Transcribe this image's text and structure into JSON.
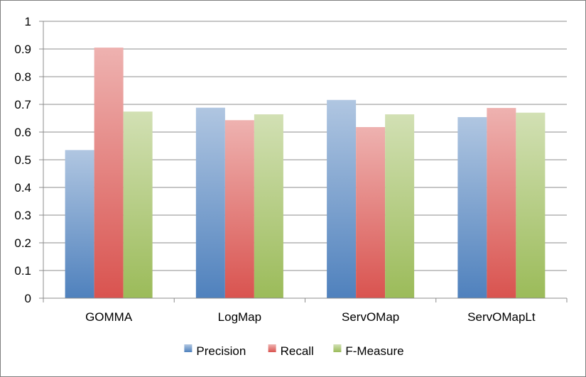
{
  "chart_data": {
    "type": "bar",
    "categories": [
      "GOMMA",
      "LogMap",
      "ServOMap",
      "ServOMapLt"
    ],
    "series": [
      {
        "name": "Precision",
        "values": [
          0.535,
          0.688,
          0.716,
          0.654
        ],
        "color": "#4f81bd"
      },
      {
        "name": "Recall",
        "values": [
          0.905,
          0.643,
          0.618,
          0.687
        ],
        "color": "#d9534f"
      },
      {
        "name": "F-Measure",
        "values": [
          0.674,
          0.664,
          0.664,
          0.67
        ],
        "color": "#9bbb59"
      }
    ],
    "ylim": [
      0,
      1
    ],
    "yticks": [
      "0",
      "0.1",
      "0.2",
      "0.3",
      "0.4",
      "0.5",
      "0.6",
      "0.7",
      "0.8",
      "0.9",
      "1"
    ],
    "grid": true,
    "legend": "bottom",
    "title": "",
    "xlabel": "",
    "ylabel": ""
  }
}
